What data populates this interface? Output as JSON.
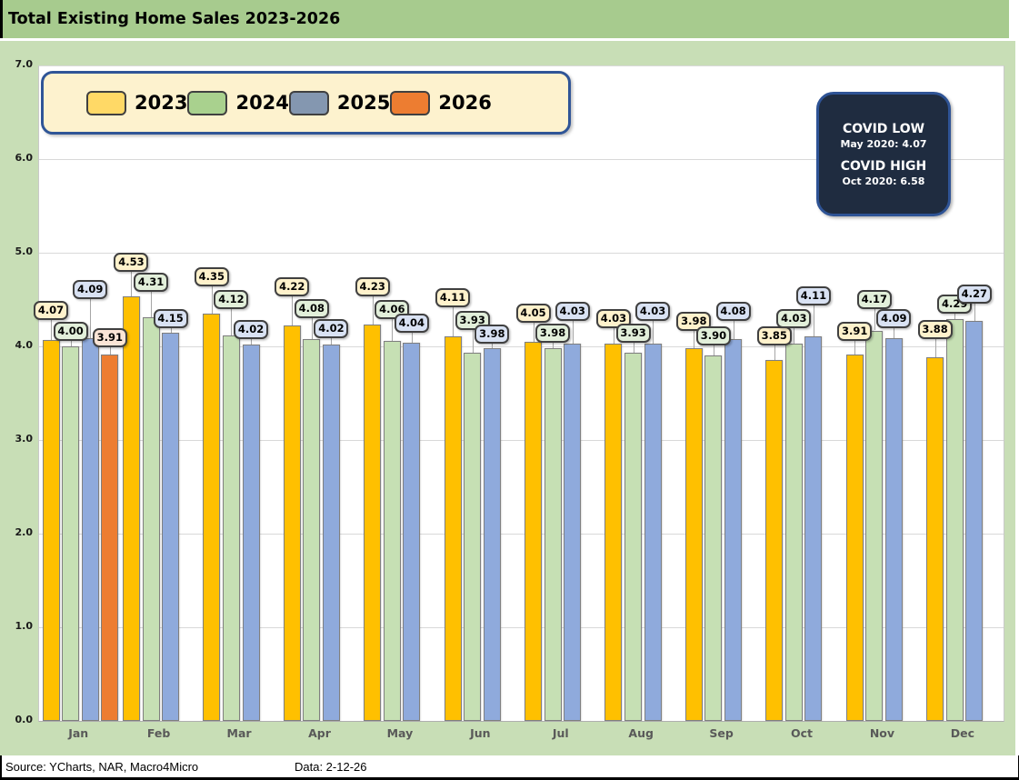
{
  "title": "Total Existing Home Sales 2023-2026",
  "colors": {
    "header_bg": "#A7CB8E",
    "panel_bg": "#C8DEB6",
    "legend_bg": "#FDF2CE",
    "legend_border": "#2F5597",
    "covid_bg": "#1F2C40",
    "covid_border": "#2E5395"
  },
  "chart_data": {
    "type": "bar",
    "title": "Total Existing Home Sales 2023-2026",
    "categories": [
      "Jan",
      "Feb",
      "Mar",
      "Apr",
      "May",
      "Jun",
      "Jul",
      "Aug",
      "Sep",
      "Oct",
      "Nov",
      "Dec"
    ],
    "series": [
      {
        "name": "2023",
        "bar_color": "#FFC000",
        "legend_color": "#FFD966",
        "label_bg": "#FFF2CC",
        "values": [
          4.07,
          4.53,
          4.35,
          4.22,
          4.23,
          4.11,
          4.05,
          4.03,
          3.98,
          3.85,
          3.91,
          3.88
        ],
        "label_y": [
          4.38,
          4.9,
          4.74,
          4.64,
          4.64,
          4.52,
          4.35,
          4.3,
          4.27,
          4.11,
          4.16,
          4.18
        ]
      },
      {
        "name": "2024",
        "bar_color": "#C6E0B4",
        "legend_color": "#A9D18E",
        "label_bg": "#E2EFDA",
        "values": [
          4.0,
          4.31,
          4.12,
          4.08,
          4.06,
          3.93,
          3.98,
          3.93,
          3.9,
          4.03,
          4.17,
          4.29
        ],
        "label_y": [
          4.16,
          4.68,
          4.5,
          4.4,
          4.39,
          4.28,
          4.14,
          4.14,
          4.11,
          4.3,
          4.5,
          4.45
        ]
      },
      {
        "name": "2025",
        "bar_color": "#8FAADC",
        "legend_color": "#8497B0",
        "label_bg": "#D9E2F3",
        "values": [
          4.09,
          4.15,
          4.02,
          4.02,
          4.04,
          3.98,
          4.03,
          4.03,
          4.08,
          4.11,
          4.09,
          4.27
        ],
        "label_y": [
          4.61,
          4.3,
          4.18,
          4.19,
          4.25,
          4.13,
          4.37,
          4.37,
          4.37,
          4.54,
          4.3,
          4.56
        ]
      },
      {
        "name": "2026",
        "bar_color": "#ED7D31",
        "legend_color": "#ED7D31",
        "label_bg": "#FBE5D6",
        "values": [
          3.91,
          null,
          null,
          null,
          null,
          null,
          null,
          null,
          null,
          null,
          null,
          null
        ],
        "label_y": [
          4.09,
          null,
          null,
          null,
          null,
          null,
          null,
          null,
          null,
          null,
          null,
          null
        ]
      }
    ],
    "ylim": [
      0,
      7
    ],
    "yticks": [
      "7.0",
      "6.0",
      "5.0",
      "4.0",
      "3.0",
      "2.0",
      "1.0",
      "0.0"
    ],
    "grid": true,
    "legend_position": "top-left",
    "value_label_format": "0.00"
  },
  "annotation_box": {
    "covid_low_title": "COVID LOW",
    "covid_low_value": "May 2020: 4.07",
    "covid_high_title": "COVID HIGH",
    "covid_high_value": "Oct 2020: 6.58"
  },
  "footer": {
    "source": "Source: YCharts, NAR, Macro4Micro",
    "data_date": "Data: 2-12-26"
  }
}
